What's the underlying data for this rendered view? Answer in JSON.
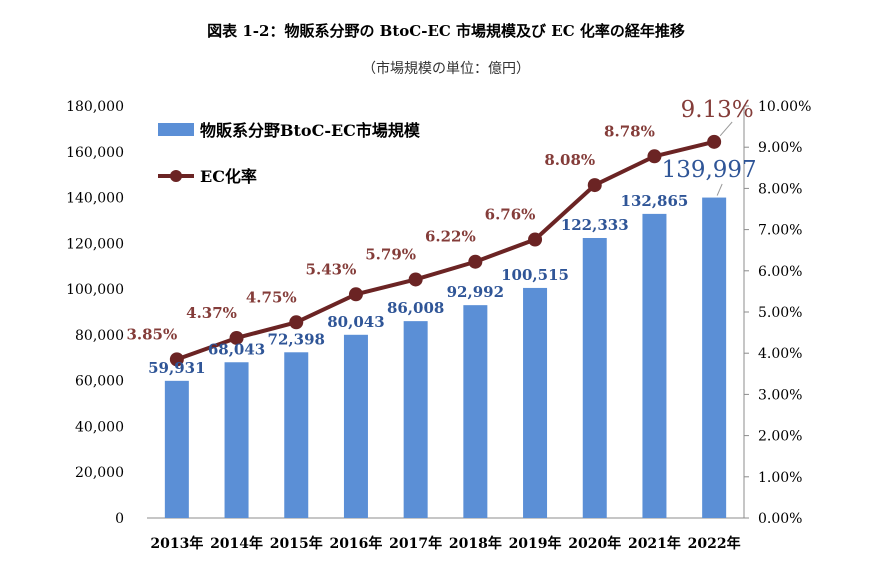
{
  "title": "図表 1-2：物販系分野の BtoC-EC 市場規模及び EC 化率の経年推移",
  "subtitle": "（市場規模の単位：億円）",
  "colors": {
    "bar": "#5b8fd6",
    "line": "#6b2424",
    "bar_label": "#2f5597",
    "rate_label": "#843c39"
  },
  "chart_data": {
    "type": "bar",
    "categories": [
      "2013年",
      "2014年",
      "2015年",
      "2016年",
      "2017年",
      "2018年",
      "2019年",
      "2020年",
      "2021年",
      "2022年"
    ],
    "series": [
      {
        "name": "物販系分野BtoC-EC市場規模",
        "type": "bar",
        "axis": "left",
        "values": [
          59931,
          68043,
          72398,
          80043,
          86008,
          92992,
          100515,
          122333,
          132865,
          139997
        ],
        "labels": [
          "59,931",
          "68,043",
          "72,398",
          "80,043",
          "86,008",
          "92,992",
          "100,515",
          "122,333",
          "132,865",
          "139,997"
        ]
      },
      {
        "name": "EC化率",
        "type": "line",
        "axis": "right",
        "values": [
          3.85,
          4.37,
          4.75,
          5.43,
          5.79,
          6.22,
          6.76,
          8.08,
          8.78,
          9.13
        ],
        "labels": [
          "3.85%",
          "4.37%",
          "4.75%",
          "5.43%",
          "5.79%",
          "6.22%",
          "6.76%",
          "8.08%",
          "8.78%",
          "9.13%"
        ]
      }
    ],
    "ylim_left": [
      0,
      180000
    ],
    "ylim_right": [
      0,
      10
    ],
    "yticks_left": [
      "0",
      "20,000",
      "40,000",
      "60,000",
      "80,000",
      "100,000",
      "120,000",
      "140,000",
      "160,000",
      "180,000"
    ],
    "yticks_right": [
      "0.00%",
      "1.00%",
      "2.00%",
      "3.00%",
      "4.00%",
      "5.00%",
      "6.00%",
      "7.00%",
      "8.00%",
      "9.00%",
      "10.00%"
    ],
    "legend_position": "top-left",
    "grid": false
  }
}
